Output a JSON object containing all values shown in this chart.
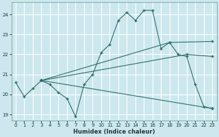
{
  "xlabel": "Humidex (Indice chaleur)",
  "bg_color": "#cce8ee",
  "grid_color": "#ffffff",
  "line_color": "#2d6b65",
  "xlim": [
    -0.5,
    23.5
  ],
  "ylim": [
    18.7,
    24.6
  ],
  "yticks": [
    19,
    20,
    21,
    22,
    23,
    24
  ],
  "xticks": [
    0,
    1,
    2,
    3,
    4,
    5,
    6,
    7,
    8,
    9,
    10,
    11,
    12,
    13,
    14,
    15,
    16,
    17,
    18,
    19,
    20,
    21,
    22,
    23
  ],
  "line_main": {
    "x": [
      0,
      1,
      2,
      3,
      4,
      5,
      6,
      7,
      8,
      9,
      10,
      11,
      12,
      13,
      14,
      15,
      16,
      17,
      18,
      19,
      20,
      21,
      22,
      23
    ],
    "y": [
      20.6,
      19.9,
      20.3,
      20.7,
      20.5,
      20.1,
      19.8,
      18.9,
      20.5,
      21.0,
      22.1,
      22.5,
      23.7,
      24.1,
      23.7,
      24.2,
      24.2,
      22.3,
      22.6,
      22.0,
      21.9,
      20.5,
      19.4,
      19.3
    ]
  },
  "line_low": {
    "x": [
      3,
      23
    ],
    "y": [
      20.7,
      19.3
    ]
  },
  "line_mid": {
    "x": [
      3,
      20,
      23
    ],
    "y": [
      20.7,
      22.0,
      21.9
    ]
  },
  "line_high": {
    "x": [
      3,
      18,
      23
    ],
    "y": [
      20.7,
      22.6,
      22.65
    ]
  }
}
